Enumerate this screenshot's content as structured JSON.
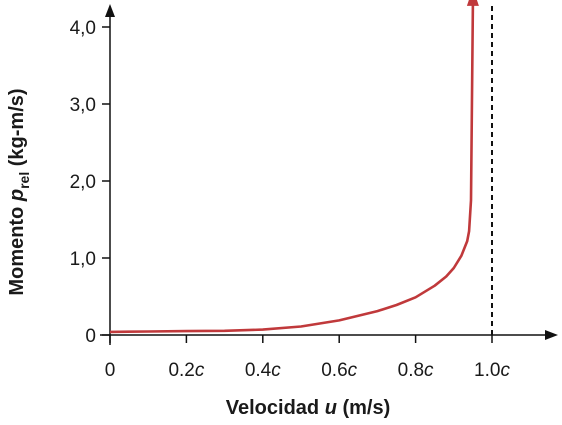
{
  "chart_data": {
    "type": "line",
    "title": "",
    "xlabel": {
      "prefix": "Velocidad ",
      "var": "u",
      "suffix": " (m/s)"
    },
    "ylabel": {
      "prefix": "Momento ",
      "var": "p",
      "sub": "rel",
      "suffix": " (kg-m/s)"
    },
    "xlim": [
      0,
      1.15
    ],
    "ylim": [
      0,
      4.5
    ],
    "x_ticks": [
      {
        "value": 0,
        "num": "0",
        "unit": ""
      },
      {
        "value": 0.2,
        "num": "0.2",
        "unit": "c"
      },
      {
        "value": 0.4,
        "num": "0.4",
        "unit": "c"
      },
      {
        "value": 0.6,
        "num": "0.6",
        "unit": "c"
      },
      {
        "value": 0.8,
        "num": "0.8",
        "unit": "c"
      },
      {
        "value": 1.0,
        "num": "1.0",
        "unit": "c"
      }
    ],
    "y_ticks": [
      {
        "value": 0,
        "label": "0"
      },
      {
        "value": 1,
        "label": "1,0"
      },
      {
        "value": 2,
        "label": "2,0"
      },
      {
        "value": 3,
        "label": "3,0"
      },
      {
        "value": 4,
        "label": "4,0"
      }
    ],
    "asymptote_x": 1.0,
    "series": [
      {
        "color": "#c0393b",
        "x": [
          0,
          0.1,
          0.2,
          0.3,
          0.4,
          0.5,
          0.6,
          0.7,
          0.75,
          0.8,
          0.85,
          0.88,
          0.9,
          0.92,
          0.935,
          0.94,
          0.945,
          0.95
        ],
        "y": [
          0.04,
          0.045,
          0.05,
          0.055,
          0.07,
          0.11,
          0.19,
          0.31,
          0.39,
          0.49,
          0.64,
          0.76,
          0.87,
          1.03,
          1.22,
          1.35,
          1.75,
          4.3
        ]
      }
    ],
    "grid": false
  }
}
